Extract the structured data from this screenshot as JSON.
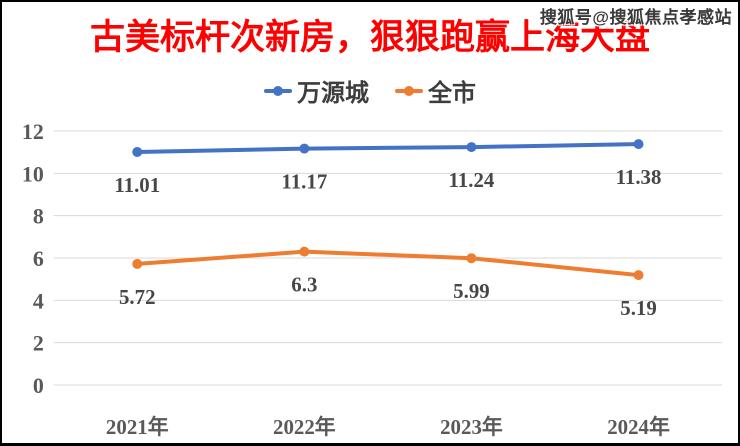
{
  "watermark": {
    "text": "搜狐号@搜狐焦点孝感站"
  },
  "title": "古美标杆次新房，狠狠跑赢上海大盘",
  "colors": {
    "title": "#fe0000",
    "grid": "#d9d9d9",
    "axis_text": "#595959",
    "label_text": "#474747",
    "legend_text": "#3d3d3d",
    "series_wanyuancheng": "#4472c4",
    "series_quanshi": "#ed7d31"
  },
  "chart_data": {
    "type": "line",
    "title": "古美标杆次新房，狠狠跑赢上海大盘",
    "categories": [
      "2021年",
      "2022年",
      "2023年",
      "2024年"
    ],
    "series": [
      {
        "name": "万源城",
        "color": "#4472c4",
        "values": [
          11.01,
          11.17,
          11.24,
          11.38
        ]
      },
      {
        "name": "全市",
        "color": "#ed7d31",
        "values": [
          5.72,
          6.3,
          5.99,
          5.19
        ]
      }
    ],
    "ylim": [
      0,
      12
    ],
    "ytick_step": 2,
    "yticks": [
      0,
      2,
      4,
      6,
      8,
      10,
      12
    ],
    "grid": true,
    "legend_position": "top",
    "data_labels": true
  }
}
